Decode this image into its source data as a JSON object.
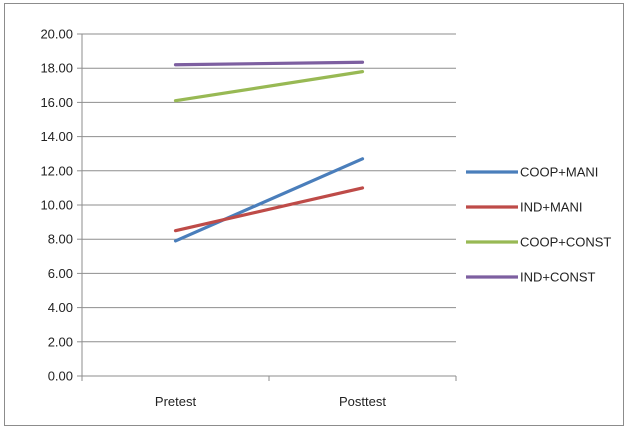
{
  "chart_data": {
    "type": "line",
    "categories": [
      "Pretest",
      "Posttest"
    ],
    "series": [
      {
        "name": "COOP+MANI",
        "values": [
          7.9,
          12.7
        ],
        "color": "#4a7ebb"
      },
      {
        "name": "IND+MANI",
        "values": [
          8.5,
          11.0
        ],
        "color": "#be4b48"
      },
      {
        "name": "COOP+CONST",
        "values": [
          16.1,
          17.8
        ],
        "color": "#98b954"
      },
      {
        "name": "IND+CONST",
        "values": [
          18.2,
          18.35
        ],
        "color": "#7d5fa0"
      }
    ],
    "ylim": [
      0,
      20
    ],
    "yticks": [
      "0.00",
      "2.00",
      "4.00",
      "6.00",
      "8.00",
      "10.00",
      "12.00",
      "14.00",
      "16.00",
      "18.00",
      "20.00"
    ],
    "grid": true,
    "legend": "right",
    "title": "",
    "xlabel": "",
    "ylabel": ""
  }
}
